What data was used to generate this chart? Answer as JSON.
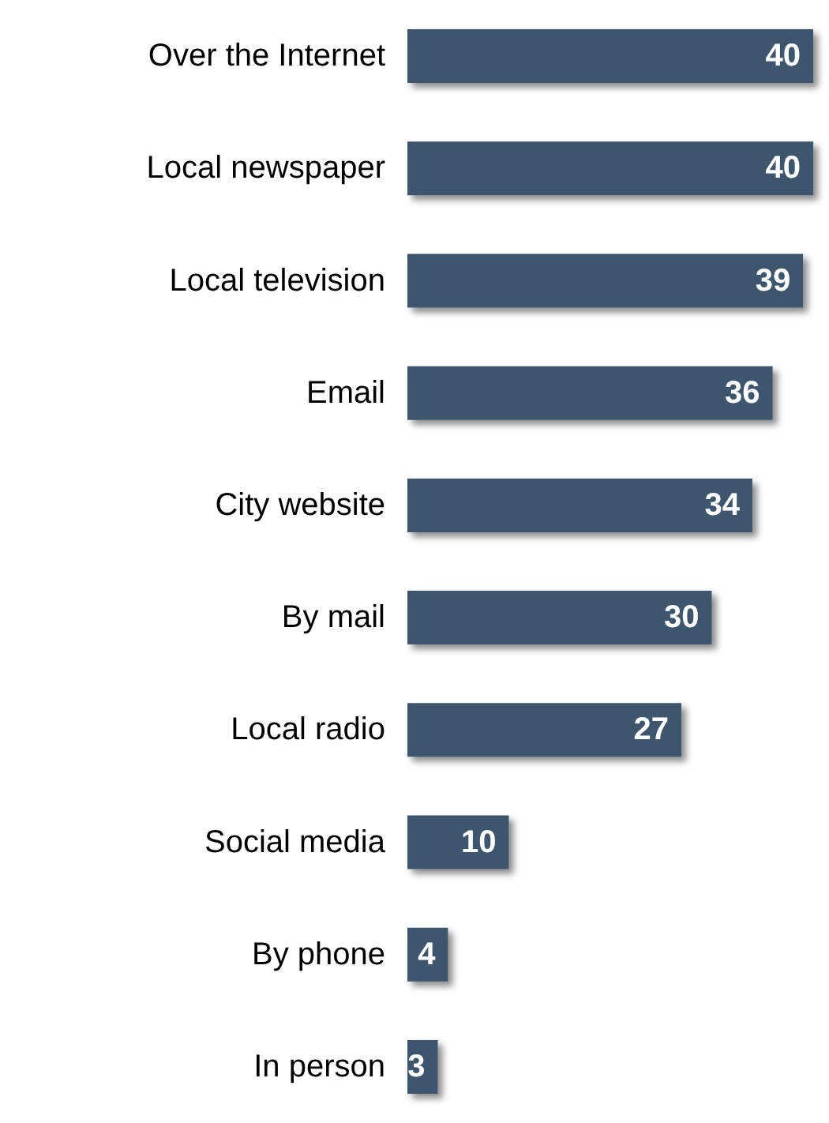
{
  "chart_data": {
    "type": "bar",
    "orientation": "horizontal",
    "categories": [
      "Over the Internet",
      "Local newspaper",
      "Local television",
      "Email",
      "City website",
      "By mail",
      "Local radio",
      "Social media",
      "By phone",
      "In person"
    ],
    "values": [
      40,
      40,
      39,
      36,
      34,
      30,
      27,
      10,
      4,
      3
    ],
    "color": "#3d566e",
    "data_labels": true
  }
}
